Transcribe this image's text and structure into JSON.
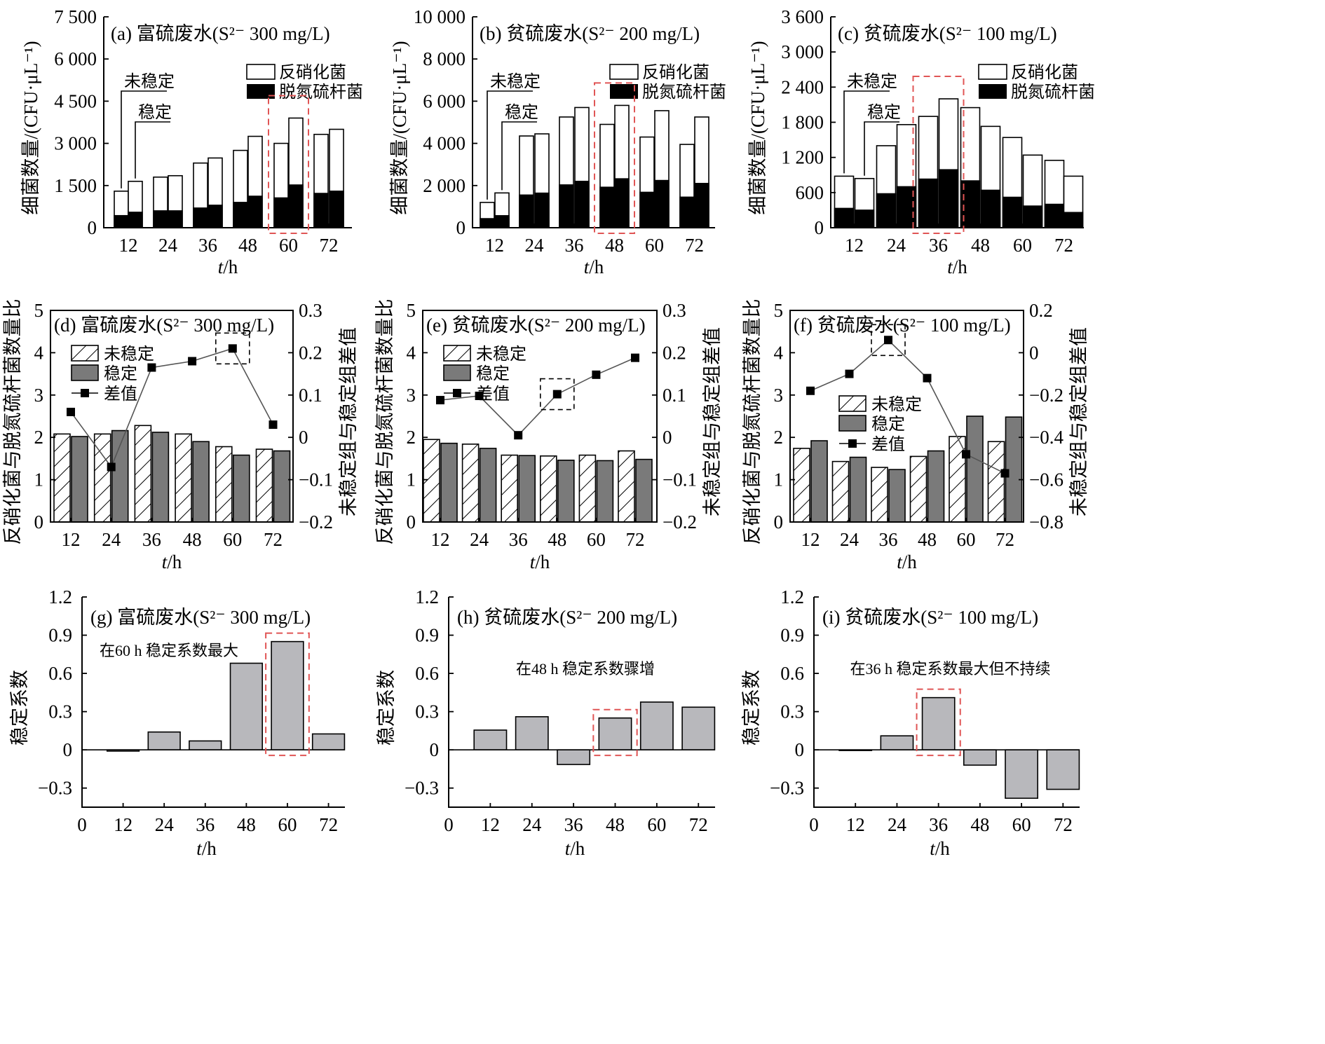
{
  "chart_data": [
    {
      "type": "bar",
      "panel": "a",
      "title": "(a)  富硫废水(S²⁻  300 mg/L)",
      "ylabel": "细菌数量/(CFU·μL⁻¹)",
      "xlabel_italic": "t",
      "xlabel_unit": "/h",
      "ylim": [
        0,
        7500
      ],
      "yticks": [
        "0",
        "1 500",
        "3 000",
        "4 500",
        "6 000",
        "7 500"
      ],
      "categories": [
        "12",
        "24",
        "36",
        "48",
        "60",
        "72"
      ],
      "series": [
        {
          "name": "反硝化菌",
          "values": [
            [
              1300,
              1650
            ],
            [
              1800,
              1850
            ],
            [
              2300,
              2480
            ],
            [
              2750,
              3250
            ],
            [
              3000,
              3900
            ],
            [
              3320,
              3500
            ]
          ]
        },
        {
          "name": "脱氮硫杆菌",
          "values": [
            [
              430,
              550
            ],
            [
              600,
              600
            ],
            [
              700,
              800
            ],
            [
              900,
              1120
            ],
            [
              1060,
              1520
            ],
            [
              1220,
              1300
            ]
          ]
        }
      ],
      "annotations": [
        "未稳定",
        "稳定"
      ],
      "highlight_category": "60"
    },
    {
      "type": "bar",
      "panel": "b",
      "title": "(b)  贫硫废水(S²⁻  200 mg/L)",
      "ylabel": "细菌数量/(CFU·μL⁻¹)",
      "xlabel_italic": "t",
      "xlabel_unit": "/h",
      "ylim": [
        0,
        10000
      ],
      "yticks": [
        "0",
        "2 000",
        "4 000",
        "6 000",
        "8 000",
        "10 000"
      ],
      "categories": [
        "12",
        "24",
        "36",
        "48",
        "60",
        "72"
      ],
      "series": [
        {
          "name": "反硝化菌",
          "values": [
            [
              1200,
              1650
            ],
            [
              4350,
              4450
            ],
            [
              5250,
              5700
            ],
            [
              4900,
              5800
            ],
            [
              4300,
              5550
            ],
            [
              3950,
              5250
            ]
          ]
        },
        {
          "name": "脱氮硫杆菌",
          "values": [
            [
              430,
              570
            ],
            [
              1550,
              1640
            ],
            [
              2030,
              2200
            ],
            [
              1920,
              2320
            ],
            [
              1680,
              2240
            ],
            [
              1450,
              2100
            ]
          ]
        }
      ],
      "annotations": [
        "未稳定",
        "稳定"
      ],
      "highlight_category": "48"
    },
    {
      "type": "bar",
      "panel": "c",
      "title": "(c)  贫硫废水(S²⁻  100 mg/L)",
      "ylabel": "细菌数量/(CFU·μL⁻¹)",
      "xlabel_italic": "t",
      "xlabel_unit": "/h",
      "ylim": [
        0,
        3600
      ],
      "yticks": [
        "0",
        "600",
        "1 200",
        "1 800",
        "2 400",
        "3 000",
        "3 600"
      ],
      "categories": [
        "12",
        "24",
        "36",
        "48",
        "60",
        "72"
      ],
      "series": [
        {
          "name": "反硝化菌",
          "values": [
            [
              880,
              840
            ],
            [
              1400,
              1760
            ],
            [
              1900,
              2200
            ],
            [
              2050,
              1730
            ],
            [
              1540,
              1240
            ],
            [
              1150,
              880
            ]
          ]
        },
        {
          "name": "脱氮硫杆菌",
          "values": [
            [
              330,
              300
            ],
            [
              580,
              700
            ],
            [
              830,
              990
            ],
            [
              800,
              640
            ],
            [
              520,
              370
            ],
            [
              400,
              260
            ]
          ]
        }
      ],
      "annotations": [
        "未稳定",
        "稳定"
      ],
      "highlight_category": "36"
    },
    {
      "type": "bar+line",
      "panel": "d",
      "title": "(d) 富硫废水(S²⁻  300 mg/L)",
      "ylabel": "反硝化菌与脱氮硫杆菌数量比",
      "ylabel_right": "未稳定组与稳定组差值",
      "xlabel_italic": "t",
      "xlabel_unit": "/h",
      "ylim": [
        0,
        5
      ],
      "y2lim": [
        -0.2,
        0.3
      ],
      "yticks": [
        "0",
        "1",
        "2",
        "3",
        "4",
        "5"
      ],
      "y2ticks": [
        "−0.2",
        "−0.1",
        "0",
        "0.1",
        "0.2",
        "0.3"
      ],
      "categories": [
        "12",
        "24",
        "36",
        "48",
        "60",
        "72"
      ],
      "series": [
        {
          "name": "未稳定",
          "values": [
            2.08,
            2.08,
            2.28,
            2.08,
            1.78,
            1.72
          ]
        },
        {
          "name": "稳定",
          "values": [
            2.02,
            2.16,
            2.12,
            1.9,
            1.58,
            1.68
          ]
        },
        {
          "name": "差值",
          "values": [
            0.06,
            -0.07,
            0.165,
            0.18,
            0.21,
            0.03
          ]
        }
      ],
      "highlight_category": "60"
    },
    {
      "type": "bar+line",
      "panel": "e",
      "title": "(e) 贫硫废水(S²⁻  200 mg/L)",
      "ylabel": "反硝化菌与脱氮硫杆菌数量比",
      "ylabel_right": "未稳定组与稳定组差值",
      "xlabel_italic": "t",
      "xlabel_unit": "/h",
      "ylim": [
        0,
        5
      ],
      "y2lim": [
        -0.2,
        0.3
      ],
      "yticks": [
        "0",
        "1",
        "2",
        "3",
        "4",
        "5"
      ],
      "y2ticks": [
        "−0.2",
        "−0.1",
        "0",
        "0.1",
        "0.2",
        "0.3"
      ],
      "categories": [
        "12",
        "24",
        "36",
        "48",
        "60",
        "72"
      ],
      "series": [
        {
          "name": "未稳定",
          "values": [
            1.95,
            1.84,
            1.58,
            1.56,
            1.58,
            1.68
          ]
        },
        {
          "name": "稳定",
          "values": [
            1.86,
            1.74,
            1.57,
            1.46,
            1.45,
            1.48
          ]
        },
        {
          "name": "差值",
          "values": [
            0.088,
            0.098,
            0.005,
            0.102,
            0.148,
            0.188
          ]
        }
      ],
      "highlight_category": "48"
    },
    {
      "type": "bar+line",
      "panel": "f",
      "title": "(f) 贫硫废水(S²⁻  100 mg/L)",
      "ylabel": "反硝化菌与脱氮硫杆菌数量比",
      "ylabel_right": "未稳定组与稳定组差值",
      "xlabel_italic": "t",
      "xlabel_unit": "/h",
      "ylim": [
        0,
        5
      ],
      "y2lim": [
        -0.8,
        0.2
      ],
      "yticks": [
        "0",
        "1",
        "2",
        "3",
        "4",
        "5"
      ],
      "y2ticks": [
        "−0.8",
        "−0.6",
        "−0.4",
        "−0.2",
        "0",
        "0.2"
      ],
      "categories": [
        "12",
        "24",
        "36",
        "48",
        "60",
        "72"
      ],
      "series": [
        {
          "name": "未稳定",
          "values": [
            1.74,
            1.43,
            1.29,
            1.55,
            2.02,
            1.9
          ]
        },
        {
          "name": "稳定",
          "values": [
            1.92,
            1.53,
            1.24,
            1.68,
            2.5,
            2.48
          ]
        },
        {
          "name": "差值",
          "values": [
            -0.18,
            -0.1,
            0.06,
            -0.12,
            -0.48,
            -0.57
          ]
        }
      ],
      "highlight_category": "36"
    },
    {
      "type": "bar",
      "panel": "g",
      "title": "(g) 富硫废水(S²⁻   300 mg/L)",
      "annotation": "在60 h 稳定系数最大",
      "ylabel": "稳定系数",
      "xlabel_italic": "t",
      "xlabel_unit": "/h",
      "ylim": [
        -0.45,
        1.2
      ],
      "yticks": [
        "−0.3",
        "0",
        "0.3",
        "0.6",
        "0.9",
        "1.2"
      ],
      "xticks": [
        "0",
        "12",
        "24",
        "36",
        "48",
        "60",
        "72"
      ],
      "categories": [
        "12",
        "24",
        "36",
        "48",
        "60",
        "72"
      ],
      "values": [
        -0.01,
        0.14,
        0.07,
        0.68,
        0.85,
        0.125
      ],
      "highlight_category": "60"
    },
    {
      "type": "bar",
      "panel": "h",
      "title": "(h)  贫硫废水(S²⁻  200 mg/L)",
      "annotation": "在48 h 稳定系数骤增",
      "ylabel": "稳定系数",
      "xlabel_italic": "t",
      "xlabel_unit": "/h",
      "ylim": [
        -0.45,
        1.2
      ],
      "yticks": [
        "−0.3",
        "0",
        "0.3",
        "0.6",
        "0.9",
        "1.2"
      ],
      "xticks": [
        "0",
        "12",
        "24",
        "36",
        "48",
        "60",
        "72"
      ],
      "categories": [
        "12",
        "24",
        "36",
        "48",
        "60",
        "72"
      ],
      "values": [
        0.155,
        0.26,
        -0.115,
        0.25,
        0.375,
        0.335
      ],
      "highlight_category": "48"
    },
    {
      "type": "bar",
      "panel": "i",
      "title": "(i)  贫硫废水(S²⁻  100 mg/L)",
      "annotation": "在36 h 稳定系数最大但不持续",
      "ylabel": "稳定系数",
      "xlabel_italic": "t",
      "xlabel_unit": "/h",
      "ylim": [
        -0.45,
        1.2
      ],
      "yticks": [
        "−0.3",
        "0",
        "0.3",
        "0.6",
        "0.9",
        "1.2"
      ],
      "xticks": [
        "0",
        "12",
        "24",
        "36",
        "48",
        "60",
        "72"
      ],
      "categories": [
        "12",
        "24",
        "36",
        "48",
        "60",
        "72"
      ],
      "values": [
        0,
        0.11,
        0.41,
        -0.12,
        -0.38,
        -0.31
      ],
      "highlight_category": "36"
    }
  ],
  "colors": {
    "highlight": "#e05555",
    "stable_gray": "#7a7a7a",
    "coef_gray": "#b8b8bc",
    "black": "#000000"
  }
}
